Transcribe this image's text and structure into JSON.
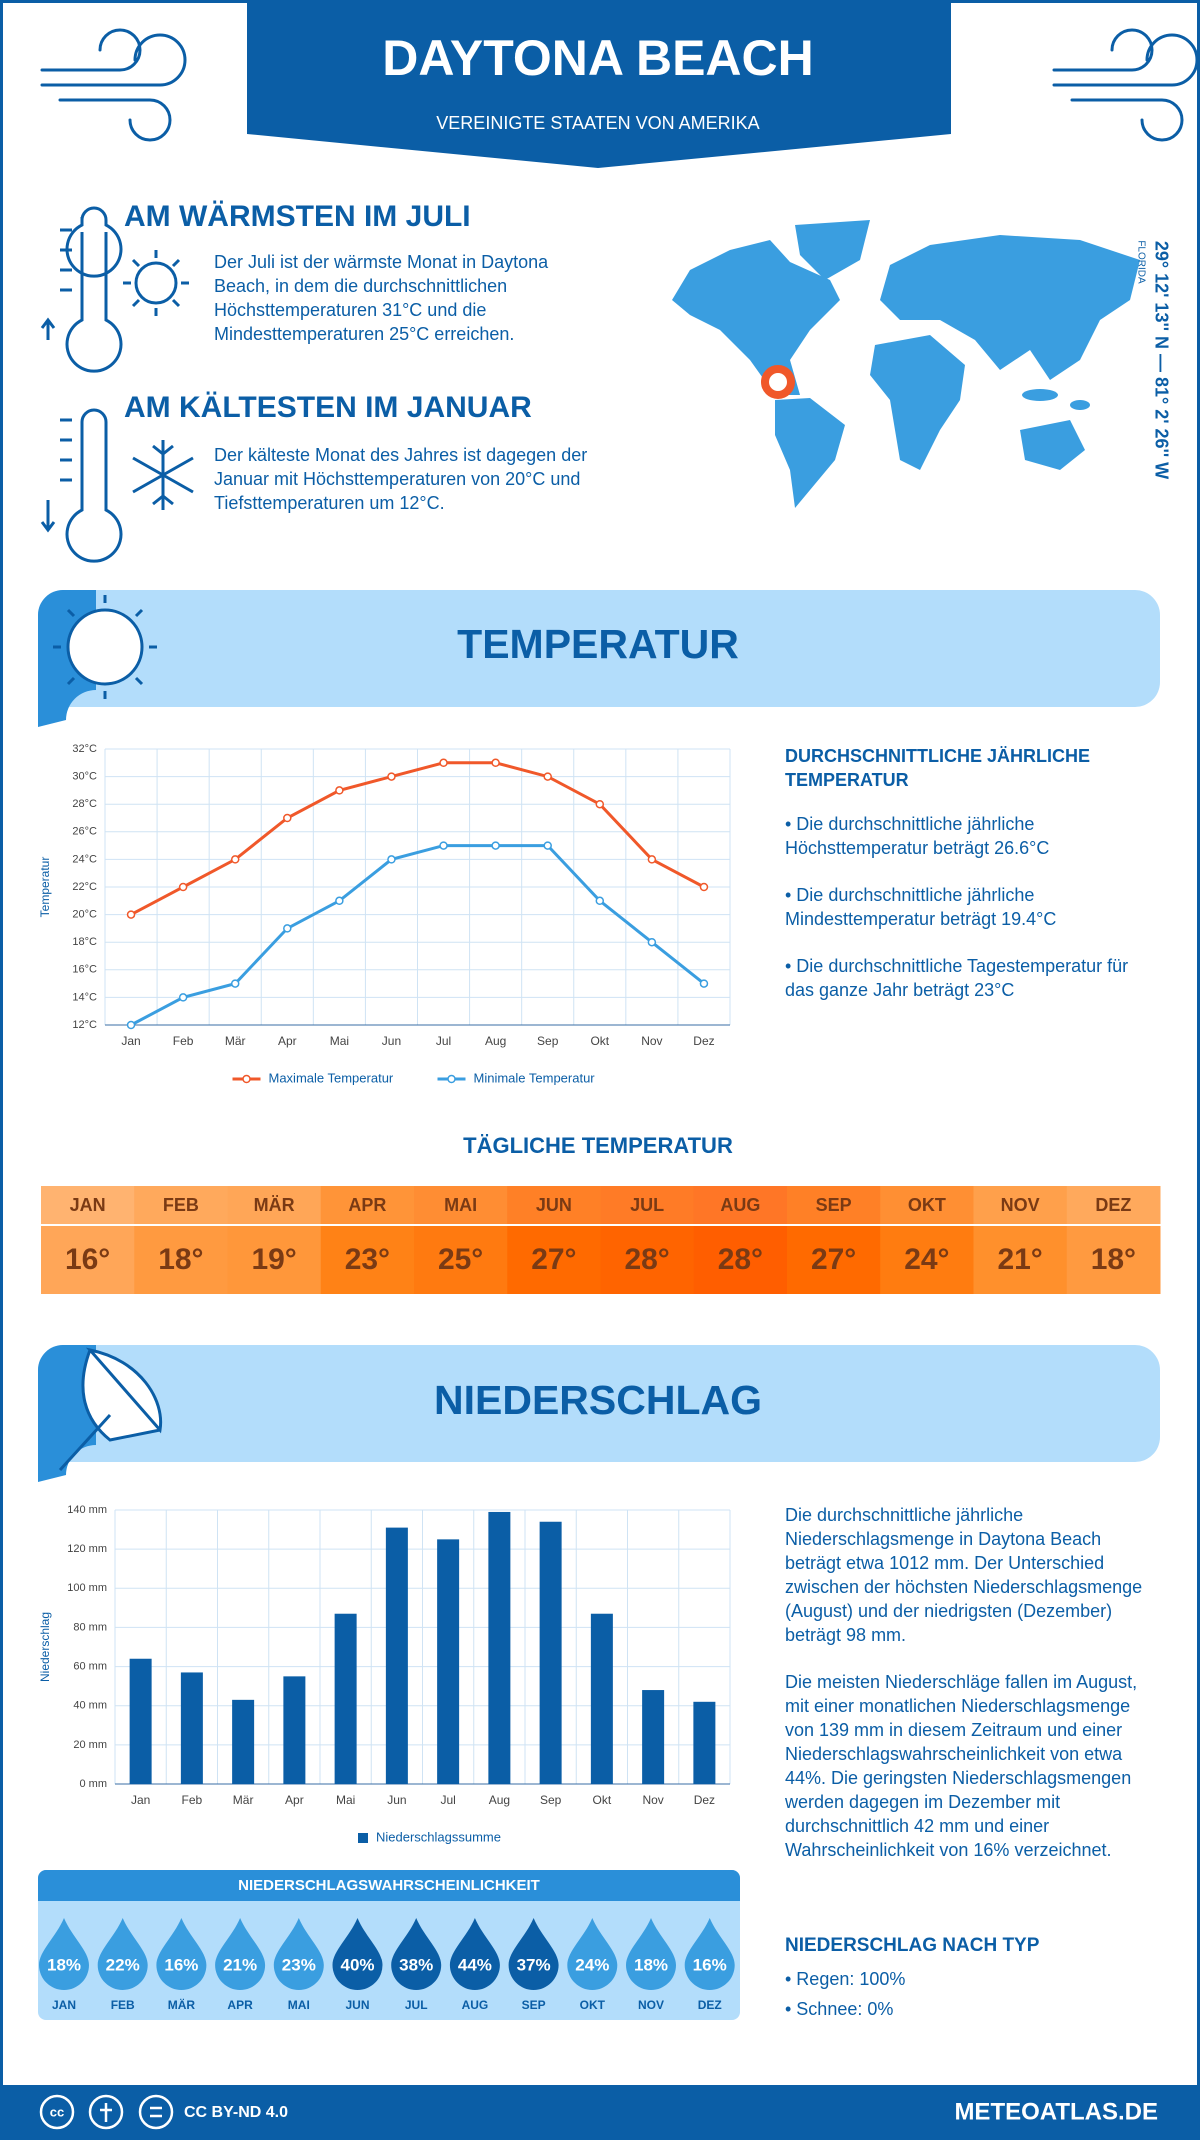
{
  "header": {
    "title": "DAYTONA BEACH",
    "subtitle": "VEREINIGTE STAATEN VON AMERIKA"
  },
  "warmest": {
    "title": "AM WÄRMSTEN IM JULI",
    "text": "Der Juli ist der wärmste Monat in Daytona Beach, in dem die durchschnittlichen Höchsttemperaturen 31°C und die Mindesttemperaturen 25°C erreichen."
  },
  "coldest": {
    "title": "AM KÄLTESTEN IM JANUAR",
    "text": "Der kälteste Monat des Jahres ist dagegen der Januar mit Höchsttemperaturen von 20°C und Tiefsttemperaturen um 12°C."
  },
  "location": {
    "coordinates": "29° 12' 13'' N — 81° 2' 26'' W",
    "region": "FLORIDA"
  },
  "temperature_section": {
    "title": "TEMPERATUR"
  },
  "chart_data": [
    {
      "type": "line",
      "y_label": "Temperatur",
      "categories": [
        "Jan",
        "Feb",
        "Mär",
        "Apr",
        "Mai",
        "Jun",
        "Jul",
        "Aug",
        "Sep",
        "Okt",
        "Nov",
        "Dez"
      ],
      "series": [
        {
          "name": "Maximale Temperatur",
          "color": "#f0582a",
          "values": [
            20,
            22,
            24,
            27,
            29,
            30,
            31,
            31,
            30,
            28,
            24,
            22
          ]
        },
        {
          "name": "Minimale Temperatur",
          "color": "#3a9ee0",
          "values": [
            12,
            14,
            15,
            19,
            21,
            24,
            25,
            25,
            25,
            21,
            18,
            15
          ]
        }
      ],
      "ylim": [
        12,
        32
      ],
      "yticks": [
        {
          "value": 12,
          "label": "12°C"
        },
        {
          "value": 14,
          "label": "14°C"
        },
        {
          "value": 16,
          "label": "16°C"
        },
        {
          "value": 18,
          "label": "18°C"
        },
        {
          "value": 20,
          "label": "20°C"
        },
        {
          "value": 22,
          "label": "22°C"
        },
        {
          "value": 24,
          "label": "24°C"
        },
        {
          "value": 26,
          "label": "26°C"
        },
        {
          "value": 28,
          "label": "28°C"
        },
        {
          "value": 30,
          "label": "30°C"
        },
        {
          "value": 32,
          "label": "32°C"
        }
      ],
      "grid": true
    },
    {
      "type": "bar",
      "y_label": "Niederschlag",
      "categories": [
        "Jan",
        "Feb",
        "Mär",
        "Apr",
        "Mai",
        "Jun",
        "Jul",
        "Aug",
        "Sep",
        "Okt",
        "Nov",
        "Dez"
      ],
      "series": [
        {
          "name": "Niederschlagssumme",
          "color": "#0b5ea6",
          "values": [
            64,
            57,
            43,
            55,
            87,
            131,
            125,
            139,
            134,
            87,
            48,
            42
          ]
        }
      ],
      "ylim": [
        0,
        140
      ],
      "yticks": [
        {
          "value": 0,
          "label": "0 mm"
        },
        {
          "value": 20,
          "label": "20 mm"
        },
        {
          "value": 40,
          "label": "40 mm"
        },
        {
          "value": 60,
          "label": "60 mm"
        },
        {
          "value": 80,
          "label": "80 mm"
        },
        {
          "value": 100,
          "label": "100 mm"
        },
        {
          "value": 120,
          "label": "120 mm"
        },
        {
          "value": 140,
          "label": "140 mm"
        }
      ],
      "grid": true
    }
  ],
  "temperature_summary": {
    "title": "DURCHSCHNITTLICHE JÄHRLICHE TEMPERATUR",
    "bullets": [
      "• Die durchschnittliche jährliche Höchsttemperatur beträgt 26.6°C",
      "• Die durchschnittliche jährliche Mindesttemperatur beträgt 19.4°C",
      "• Die durchschnittliche Tagestemperatur für das ganze Jahr beträgt 23°C"
    ]
  },
  "daily_temperature": {
    "title": "TÄGLICHE TEMPERATUR",
    "months": [
      "JAN",
      "FEB",
      "MÄR",
      "APR",
      "MAI",
      "JUN",
      "JUL",
      "AUG",
      "SEP",
      "OKT",
      "NOV",
      "DEZ"
    ],
    "values": [
      16,
      18,
      19,
      23,
      25,
      27,
      28,
      28,
      27,
      24,
      21,
      18
    ],
    "value_labels": [
      "16°",
      "18°",
      "19°",
      "23°",
      "25°",
      "27°",
      "28°",
      "28°",
      "27°",
      "24°",
      "21°",
      "18°"
    ],
    "colors": [
      "#ffa658",
      "#ff9a40",
      "#ff973a",
      "#ff8216",
      "#ff7a10",
      "#ff6a00",
      "#ff6400",
      "#ff5e00",
      "#ff6a00",
      "#ff7c10",
      "#ff902c",
      "#ff9a40"
    ]
  },
  "precipitation_section": {
    "title": "NIEDERSCHLAG"
  },
  "precipitation_text": {
    "paragraphs": [
      "Die durchschnittliche jährliche Niederschlagsmenge in Daytona Beach beträgt etwa 1012 mm. Der Unterschied zwischen der höchsten Niederschlagsmenge (August) und der niedrigsten (Dezember) beträgt 98 mm.",
      "Die meisten Niederschläge fallen im August, mit einer monatlichen Niederschlagsmenge von 139 mm in diesem Zeitraum und einer Niederschlagswahrscheinlichkeit von etwa 44%. Die geringsten Niederschlagsmengen werden dagegen im Dezember mit durchschnittlich 42 mm und einer Wahrscheinlichkeit von 16% verzeichnet."
    ]
  },
  "precipitation_probability": {
    "title": "NIEDERSCHLAGSWAHRSCHEINLICHKEIT",
    "months": [
      "JAN",
      "FEB",
      "MÄR",
      "APR",
      "MAI",
      "JUN",
      "JUL",
      "AUG",
      "SEP",
      "OKT",
      "NOV",
      "DEZ"
    ],
    "values": [
      18,
      22,
      16,
      21,
      23,
      40,
      38,
      44,
      37,
      24,
      18,
      16
    ],
    "value_labels": [
      "18%",
      "22%",
      "16%",
      "21%",
      "23%",
      "40%",
      "38%",
      "44%",
      "37%",
      "24%",
      "18%",
      "16%"
    ],
    "colors": [
      "#3a9ee0",
      "#3a9ee0",
      "#3a9ee0",
      "#3a9ee0",
      "#3a9ee0",
      "#0b5ea6",
      "#0b5ea6",
      "#0b5ea6",
      "#0b5ea6",
      "#3a9ee0",
      "#3a9ee0",
      "#3a9ee0"
    ]
  },
  "precipitation_type": {
    "title": "NIEDERSCHLAG NACH TYP",
    "items": [
      "• Regen: 100%",
      "• Schnee: 0%"
    ]
  },
  "footer": {
    "license": "CC BY-ND 4.0",
    "site": "METEOATLAS.DE"
  }
}
